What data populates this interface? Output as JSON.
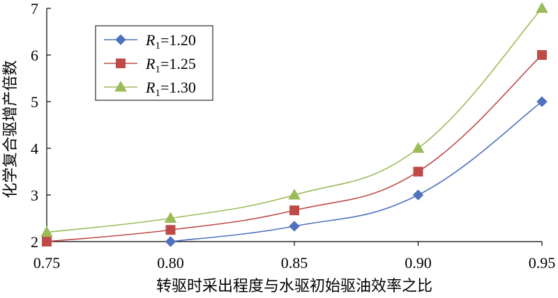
{
  "chart_data": {
    "type": "line",
    "title": "",
    "xlabel": "转驱时采出程度与水驱初始驱油效率之比",
    "ylabel": "化学复合驱增产倍数",
    "xlim": [
      0.75,
      0.95
    ],
    "ylim": [
      2,
      7
    ],
    "x_ticks": [
      "0.75",
      "0.80",
      "0.85",
      "0.90",
      "0.95"
    ],
    "y_ticks": [
      "2",
      "3",
      "4",
      "5",
      "6",
      "7"
    ],
    "grid": false,
    "legend_position": "top-left",
    "series": [
      {
        "name_prefix": "R",
        "name_subscript": "1",
        "name_suffix": "=1.20",
        "marker": "diamond",
        "color": "#4F72BE",
        "points": [
          [
            0.8,
            2.0
          ],
          [
            0.85,
            2.33
          ],
          [
            0.9,
            3.0
          ],
          [
            0.95,
            5.0
          ]
        ]
      },
      {
        "name_prefix": "R",
        "name_subscript": "1",
        "name_suffix": "=1.25",
        "marker": "square",
        "color": "#BE4B48",
        "points": [
          [
            0.75,
            2.0
          ],
          [
            0.8,
            2.25
          ],
          [
            0.85,
            2.67
          ],
          [
            0.9,
            3.5
          ],
          [
            0.95,
            6.0
          ]
        ]
      },
      {
        "name_prefix": "R",
        "name_subscript": "1",
        "name_suffix": "=1.30",
        "marker": "triangle",
        "color": "#9BBB59",
        "points": [
          [
            0.75,
            2.2
          ],
          [
            0.8,
            2.5
          ],
          [
            0.85,
            3.0
          ],
          [
            0.9,
            4.0
          ],
          [
            0.95,
            7.0
          ]
        ]
      }
    ]
  }
}
